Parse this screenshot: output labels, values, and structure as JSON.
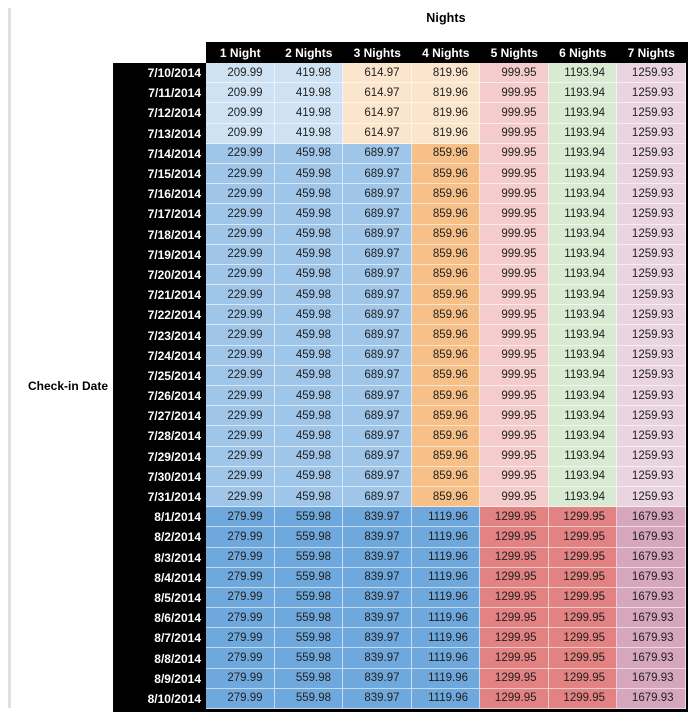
{
  "title": "Nights",
  "row_axis_label": "Check-in Date",
  "columns": [
    "1 Night",
    "2 Nights",
    "3 Nights",
    "4 Nights",
    "5 Nights",
    "6 Nights",
    "7 Nights"
  ],
  "palette": {
    "light_blue": "#CFE2F3",
    "cream": "#FCE5CD",
    "medium_blue": "#9FC5E8",
    "orange": "#F7C089",
    "light_pink": "#F4CCCC",
    "light_green": "#D9EAD3",
    "light_lavender": "#EAD4DF",
    "dark_blue": "#6FA8DC",
    "red": "#E28282",
    "mauve": "#D5A6BD",
    "header_bg": "#000000",
    "header_text": "#FFFFFF",
    "cell_text": "#1F1F1F"
  },
  "group_colors": {
    "low": [
      "light_blue",
      "light_blue",
      "cream",
      "cream",
      "light_pink",
      "light_green",
      "light_lavender"
    ],
    "mid": [
      "medium_blue",
      "medium_blue",
      "medium_blue",
      "orange",
      "light_pink",
      "light_green",
      "light_lavender"
    ],
    "high": [
      "dark_blue",
      "dark_blue",
      "dark_blue",
      "dark_blue",
      "red",
      "red",
      "mauve"
    ]
  },
  "chart_data": {
    "type": "table",
    "title": "Nights",
    "row_label": "Check-in Date",
    "columns": [
      "1 Night",
      "2 Nights",
      "3 Nights",
      "4 Nights",
      "5 Nights",
      "6 Nights",
      "7 Nights"
    ],
    "rows": [
      {
        "date": "7/10/2014",
        "group": "low",
        "values": [
          209.99,
          419.98,
          614.97,
          819.96,
          999.95,
          1193.94,
          1259.93
        ]
      },
      {
        "date": "7/11/2014",
        "group": "low",
        "values": [
          209.99,
          419.98,
          614.97,
          819.96,
          999.95,
          1193.94,
          1259.93
        ]
      },
      {
        "date": "7/12/2014",
        "group": "low",
        "values": [
          209.99,
          419.98,
          614.97,
          819.96,
          999.95,
          1193.94,
          1259.93
        ]
      },
      {
        "date": "7/13/2014",
        "group": "low",
        "values": [
          209.99,
          419.98,
          614.97,
          819.96,
          999.95,
          1193.94,
          1259.93
        ]
      },
      {
        "date": "7/14/2014",
        "group": "mid",
        "values": [
          229.99,
          459.98,
          689.97,
          859.96,
          999.95,
          1193.94,
          1259.93
        ]
      },
      {
        "date": "7/15/2014",
        "group": "mid",
        "values": [
          229.99,
          459.98,
          689.97,
          859.96,
          999.95,
          1193.94,
          1259.93
        ]
      },
      {
        "date": "7/16/2014",
        "group": "mid",
        "values": [
          229.99,
          459.98,
          689.97,
          859.96,
          999.95,
          1193.94,
          1259.93
        ]
      },
      {
        "date": "7/17/2014",
        "group": "mid",
        "values": [
          229.99,
          459.98,
          689.97,
          859.96,
          999.95,
          1193.94,
          1259.93
        ]
      },
      {
        "date": "7/18/2014",
        "group": "mid",
        "values": [
          229.99,
          459.98,
          689.97,
          859.96,
          999.95,
          1193.94,
          1259.93
        ]
      },
      {
        "date": "7/19/2014",
        "group": "mid",
        "values": [
          229.99,
          459.98,
          689.97,
          859.96,
          999.95,
          1193.94,
          1259.93
        ]
      },
      {
        "date": "7/20/2014",
        "group": "mid",
        "values": [
          229.99,
          459.98,
          689.97,
          859.96,
          999.95,
          1193.94,
          1259.93
        ]
      },
      {
        "date": "7/21/2014",
        "group": "mid",
        "values": [
          229.99,
          459.98,
          689.97,
          859.96,
          999.95,
          1193.94,
          1259.93
        ]
      },
      {
        "date": "7/22/2014",
        "group": "mid",
        "values": [
          229.99,
          459.98,
          689.97,
          859.96,
          999.95,
          1193.94,
          1259.93
        ]
      },
      {
        "date": "7/23/2014",
        "group": "mid",
        "values": [
          229.99,
          459.98,
          689.97,
          859.96,
          999.95,
          1193.94,
          1259.93
        ]
      },
      {
        "date": "7/24/2014",
        "group": "mid",
        "values": [
          229.99,
          459.98,
          689.97,
          859.96,
          999.95,
          1193.94,
          1259.93
        ]
      },
      {
        "date": "7/25/2014",
        "group": "mid",
        "values": [
          229.99,
          459.98,
          689.97,
          859.96,
          999.95,
          1193.94,
          1259.93
        ]
      },
      {
        "date": "7/26/2014",
        "group": "mid",
        "values": [
          229.99,
          459.98,
          689.97,
          859.96,
          999.95,
          1193.94,
          1259.93
        ]
      },
      {
        "date": "7/27/2014",
        "group": "mid",
        "values": [
          229.99,
          459.98,
          689.97,
          859.96,
          999.95,
          1193.94,
          1259.93
        ]
      },
      {
        "date": "7/28/2014",
        "group": "mid",
        "values": [
          229.99,
          459.98,
          689.97,
          859.96,
          999.95,
          1193.94,
          1259.93
        ]
      },
      {
        "date": "7/29/2014",
        "group": "mid",
        "values": [
          229.99,
          459.98,
          689.97,
          859.96,
          999.95,
          1193.94,
          1259.93
        ]
      },
      {
        "date": "7/30/2014",
        "group": "mid",
        "values": [
          229.99,
          459.98,
          689.97,
          859.96,
          999.95,
          1193.94,
          1259.93
        ]
      },
      {
        "date": "7/31/2014",
        "group": "mid",
        "values": [
          229.99,
          459.98,
          689.97,
          859.96,
          999.95,
          1193.94,
          1259.93
        ]
      },
      {
        "date": "8/1/2014",
        "group": "high",
        "values": [
          279.99,
          559.98,
          839.97,
          1119.96,
          1299.95,
          1299.95,
          1679.93
        ]
      },
      {
        "date": "8/2/2014",
        "group": "high",
        "values": [
          279.99,
          559.98,
          839.97,
          1119.96,
          1299.95,
          1299.95,
          1679.93
        ]
      },
      {
        "date": "8/3/2014",
        "group": "high",
        "values": [
          279.99,
          559.98,
          839.97,
          1119.96,
          1299.95,
          1299.95,
          1679.93
        ]
      },
      {
        "date": "8/4/2014",
        "group": "high",
        "values": [
          279.99,
          559.98,
          839.97,
          1119.96,
          1299.95,
          1299.95,
          1679.93
        ]
      },
      {
        "date": "8/5/2014",
        "group": "high",
        "values": [
          279.99,
          559.98,
          839.97,
          1119.96,
          1299.95,
          1299.95,
          1679.93
        ]
      },
      {
        "date": "8/6/2014",
        "group": "high",
        "values": [
          279.99,
          559.98,
          839.97,
          1119.96,
          1299.95,
          1299.95,
          1679.93
        ]
      },
      {
        "date": "8/7/2014",
        "group": "high",
        "values": [
          279.99,
          559.98,
          839.97,
          1119.96,
          1299.95,
          1299.95,
          1679.93
        ]
      },
      {
        "date": "8/8/2014",
        "group": "high",
        "values": [
          279.99,
          559.98,
          839.97,
          1119.96,
          1299.95,
          1299.95,
          1679.93
        ]
      },
      {
        "date": "8/9/2014",
        "group": "high",
        "values": [
          279.99,
          559.98,
          839.97,
          1119.96,
          1299.95,
          1299.95,
          1679.93
        ]
      },
      {
        "date": "8/10/2014",
        "group": "high",
        "values": [
          279.99,
          559.98,
          839.97,
          1119.96,
          1299.95,
          1299.95,
          1679.93
        ]
      }
    ]
  }
}
